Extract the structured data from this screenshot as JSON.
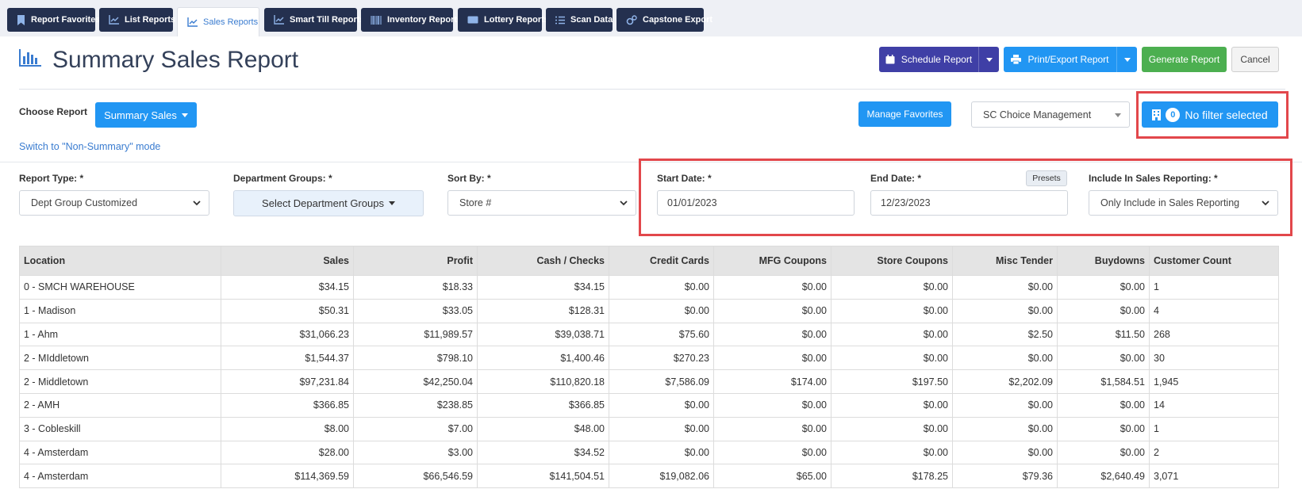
{
  "tabs": [
    {
      "label": "Report Favorites",
      "icon": "bookmark-icon"
    },
    {
      "label": "List Reports",
      "icon": "line-chart-icon"
    },
    {
      "label": "Sales Reports",
      "icon": "line-chart-icon",
      "active": true
    },
    {
      "label": "Smart Till Reports",
      "icon": "line-chart-icon"
    },
    {
      "label": "Inventory Reports",
      "icon": "barcode-icon"
    },
    {
      "label": "Lottery Reports",
      "icon": "ticket-icon"
    },
    {
      "label": "Scan Data",
      "icon": "list-icon"
    },
    {
      "label": "Capstone Export",
      "icon": "cogs-icon"
    }
  ],
  "header": {
    "title": "Summary Sales Report",
    "schedule_label": "Schedule Report",
    "print_label": "Print/Export Report",
    "generate_label": "Generate Report",
    "cancel_label": "Cancel"
  },
  "choose": {
    "label": "Choose Report",
    "button_label": "Summary Sales",
    "switch_link": "Switch to \"Non-Summary\" mode",
    "manage_favorites": "Manage Favorites",
    "company_select": "SC Choice Management",
    "filter_count": "0",
    "filter_label": "No filter selected"
  },
  "filters": {
    "report_type_label": "Report Type: *",
    "report_type_value": "Dept Group Customized",
    "dept_groups_label": "Department Groups: *",
    "dept_groups_button": "Select Department Groups",
    "sort_by_label": "Sort By: *",
    "sort_by_value": "Store #",
    "start_date_label": "Start Date: *",
    "start_date_value": "01/01/2023",
    "end_date_label": "End Date: *",
    "end_date_value": "12/23/2023",
    "presets_label": "Presets",
    "include_label": "Include In Sales Reporting: *",
    "include_value": "Only Include in Sales Reporting"
  },
  "colors": {
    "tab_dark": "#24304f",
    "primary": "#2196f3",
    "schedule": "#3f3fa6",
    "generate": "#4caf50",
    "highlight": "#e2474b"
  },
  "table": {
    "headers": [
      "Location",
      "Sales",
      "Profit",
      "Cash / Checks",
      "Credit Cards",
      "MFG Coupons",
      "Store Coupons",
      "Misc Tender",
      "Buydowns",
      "Customer Count"
    ],
    "rows": [
      [
        "0 - SMCH WAREHOUSE",
        "$34.15",
        "$18.33",
        "$34.15",
        "$0.00",
        "$0.00",
        "$0.00",
        "$0.00",
        "$0.00",
        "1"
      ],
      [
        "1 - Madison",
        "$50.31",
        "$33.05",
        "$128.31",
        "$0.00",
        "$0.00",
        "$0.00",
        "$0.00",
        "$0.00",
        "4"
      ],
      [
        "1 - Ahm",
        "$31,066.23",
        "$11,989.57",
        "$39,038.71",
        "$75.60",
        "$0.00",
        "$0.00",
        "$2.50",
        "$11.50",
        "268"
      ],
      [
        "2 - MIddletown",
        "$1,544.37",
        "$798.10",
        "$1,400.46",
        "$270.23",
        "$0.00",
        "$0.00",
        "$0.00",
        "$0.00",
        "30"
      ],
      [
        "2 - Middletown",
        "$97,231.84",
        "$42,250.04",
        "$110,820.18",
        "$7,586.09",
        "$174.00",
        "$197.50",
        "$2,202.09",
        "$1,584.51",
        "1,945"
      ],
      [
        "2 - AMH",
        "$366.85",
        "$238.85",
        "$366.85",
        "$0.00",
        "$0.00",
        "$0.00",
        "$0.00",
        "$0.00",
        "14"
      ],
      [
        "3 - Cobleskill",
        "$8.00",
        "$7.00",
        "$48.00",
        "$0.00",
        "$0.00",
        "$0.00",
        "$0.00",
        "$0.00",
        "1"
      ],
      [
        "4 - Amsterdam",
        "$28.00",
        "$3.00",
        "$34.52",
        "$0.00",
        "$0.00",
        "$0.00",
        "$0.00",
        "$0.00",
        "2"
      ],
      [
        "4 - Amsterdam",
        "$114,369.59",
        "$66,546.59",
        "$141,504.51",
        "$19,082.06",
        "$65.00",
        "$178.25",
        "$79.36",
        "$2,640.49",
        "3,071"
      ]
    ]
  }
}
